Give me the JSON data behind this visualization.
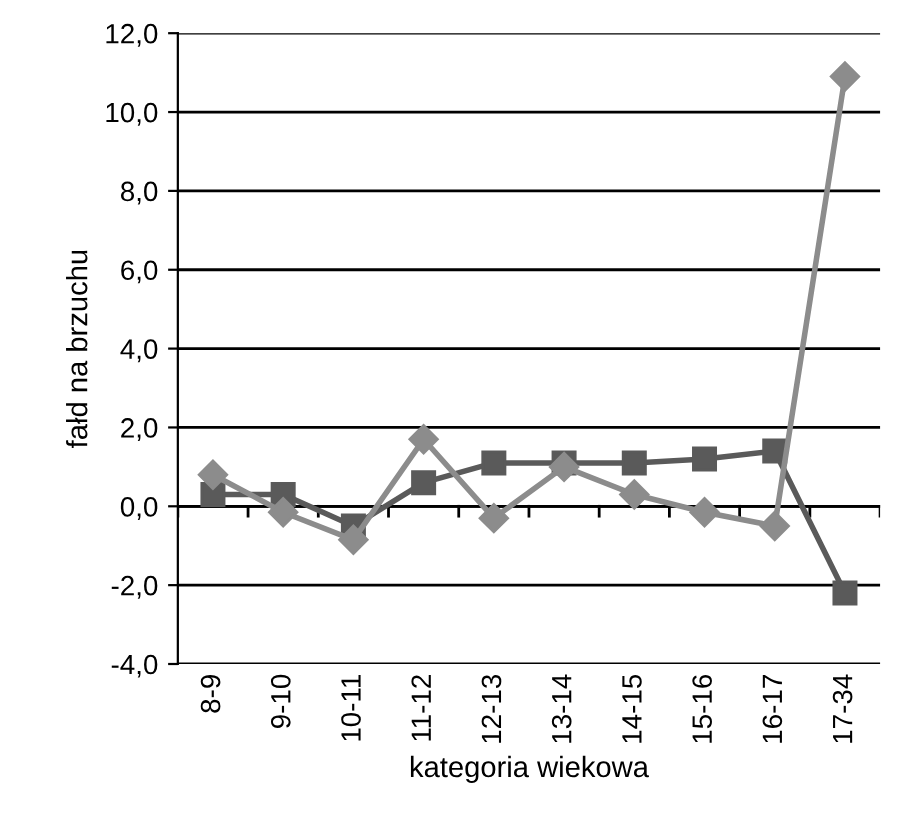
{
  "chart_data": {
    "type": "line",
    "xlabel": "kategoria wiekowa",
    "ylabel": "fałd na brzuchu",
    "categories": [
      "8-9",
      "9-10",
      "10-11",
      "11-12",
      "12-13",
      "13-14",
      "14-15",
      "15-16",
      "16-17",
      "17-34"
    ],
    "series": [
      {
        "color": "#8c8c8c",
        "marker": "diamond",
        "values": [
          0.8,
          -0.15,
          -0.85,
          1.7,
          -0.3,
          1.0,
          0.3,
          -0.15,
          -0.5,
          10.9
        ]
      },
      {
        "color": "#5a5a5a",
        "marker": "square",
        "values": [
          0.3,
          0.3,
          -0.5,
          0.6,
          1.1,
          1.1,
          1.1,
          1.2,
          1.4,
          -2.2
        ]
      }
    ],
    "ylim": [
      -4,
      12
    ],
    "yticks": [
      {
        "value": -4,
        "label": "-4,0"
      },
      {
        "value": -2,
        "label": "-2,0"
      },
      {
        "value": 0,
        "label": "0,0"
      },
      {
        "value": 2,
        "label": "2,0"
      },
      {
        "value": 4,
        "label": "4,0"
      },
      {
        "value": 6,
        "label": "6,0"
      },
      {
        "value": 8,
        "label": "8,0"
      },
      {
        "value": 10,
        "label": "10,0"
      },
      {
        "value": 12,
        "label": "12,0"
      }
    ],
    "grid": "y",
    "legend": false,
    "line_style": "solid"
  }
}
